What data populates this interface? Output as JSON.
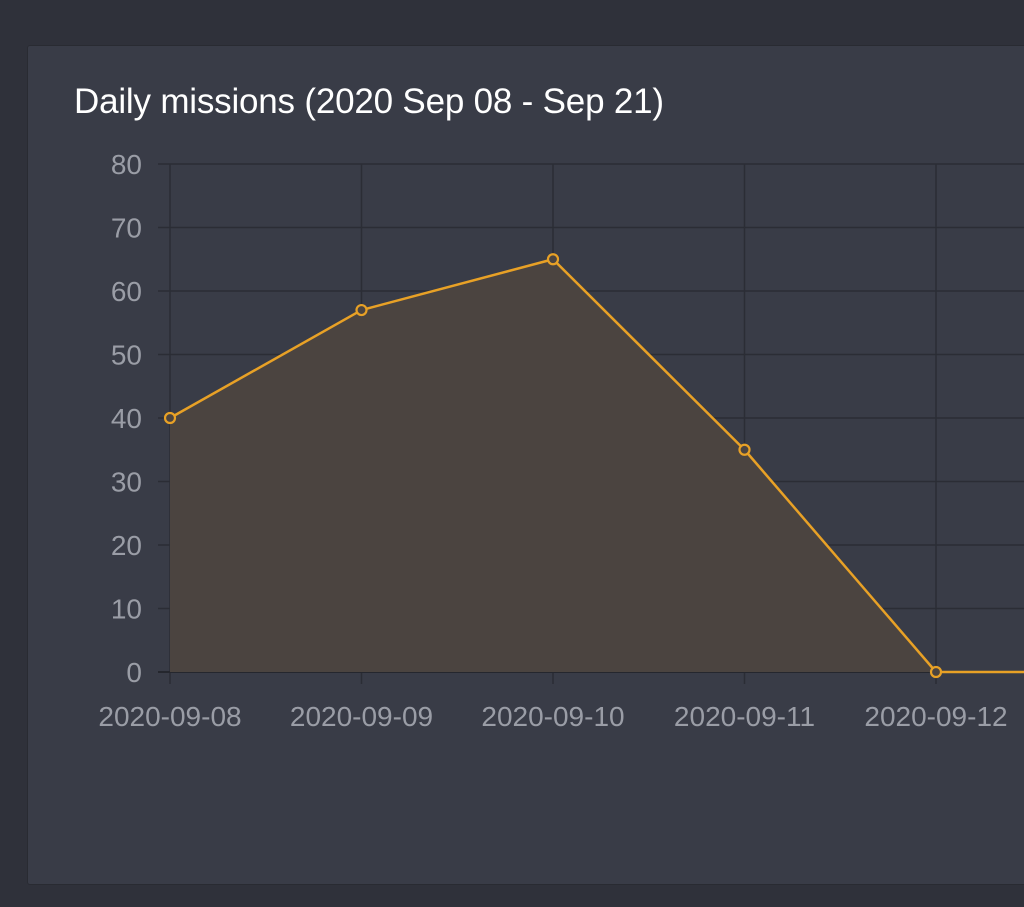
{
  "card": {
    "title": "Daily missions (2020 Sep 08 - Sep 21)"
  },
  "colors": {
    "page_background": "#2f313a",
    "card_background": "#393c47",
    "grid": "#2b2d35",
    "line": "#e8a126",
    "area_fill": "#4b4440",
    "tick_text": "#9a9da6",
    "title_text": "#ffffff"
  },
  "chart_data": {
    "type": "area",
    "title": "Daily missions (2020 Sep 08 - Sep 21)",
    "xlabel": "",
    "ylabel": "",
    "categories": [
      "2020-09-08",
      "2020-09-09",
      "2020-09-10",
      "2020-09-11",
      "2020-09-12"
    ],
    "values": [
      40,
      57,
      65,
      35,
      0
    ],
    "ylim": [
      0,
      80
    ],
    "yticks": [
      0,
      10,
      20,
      30,
      40,
      50,
      60,
      70,
      80
    ],
    "grid": true,
    "legend": "none"
  }
}
